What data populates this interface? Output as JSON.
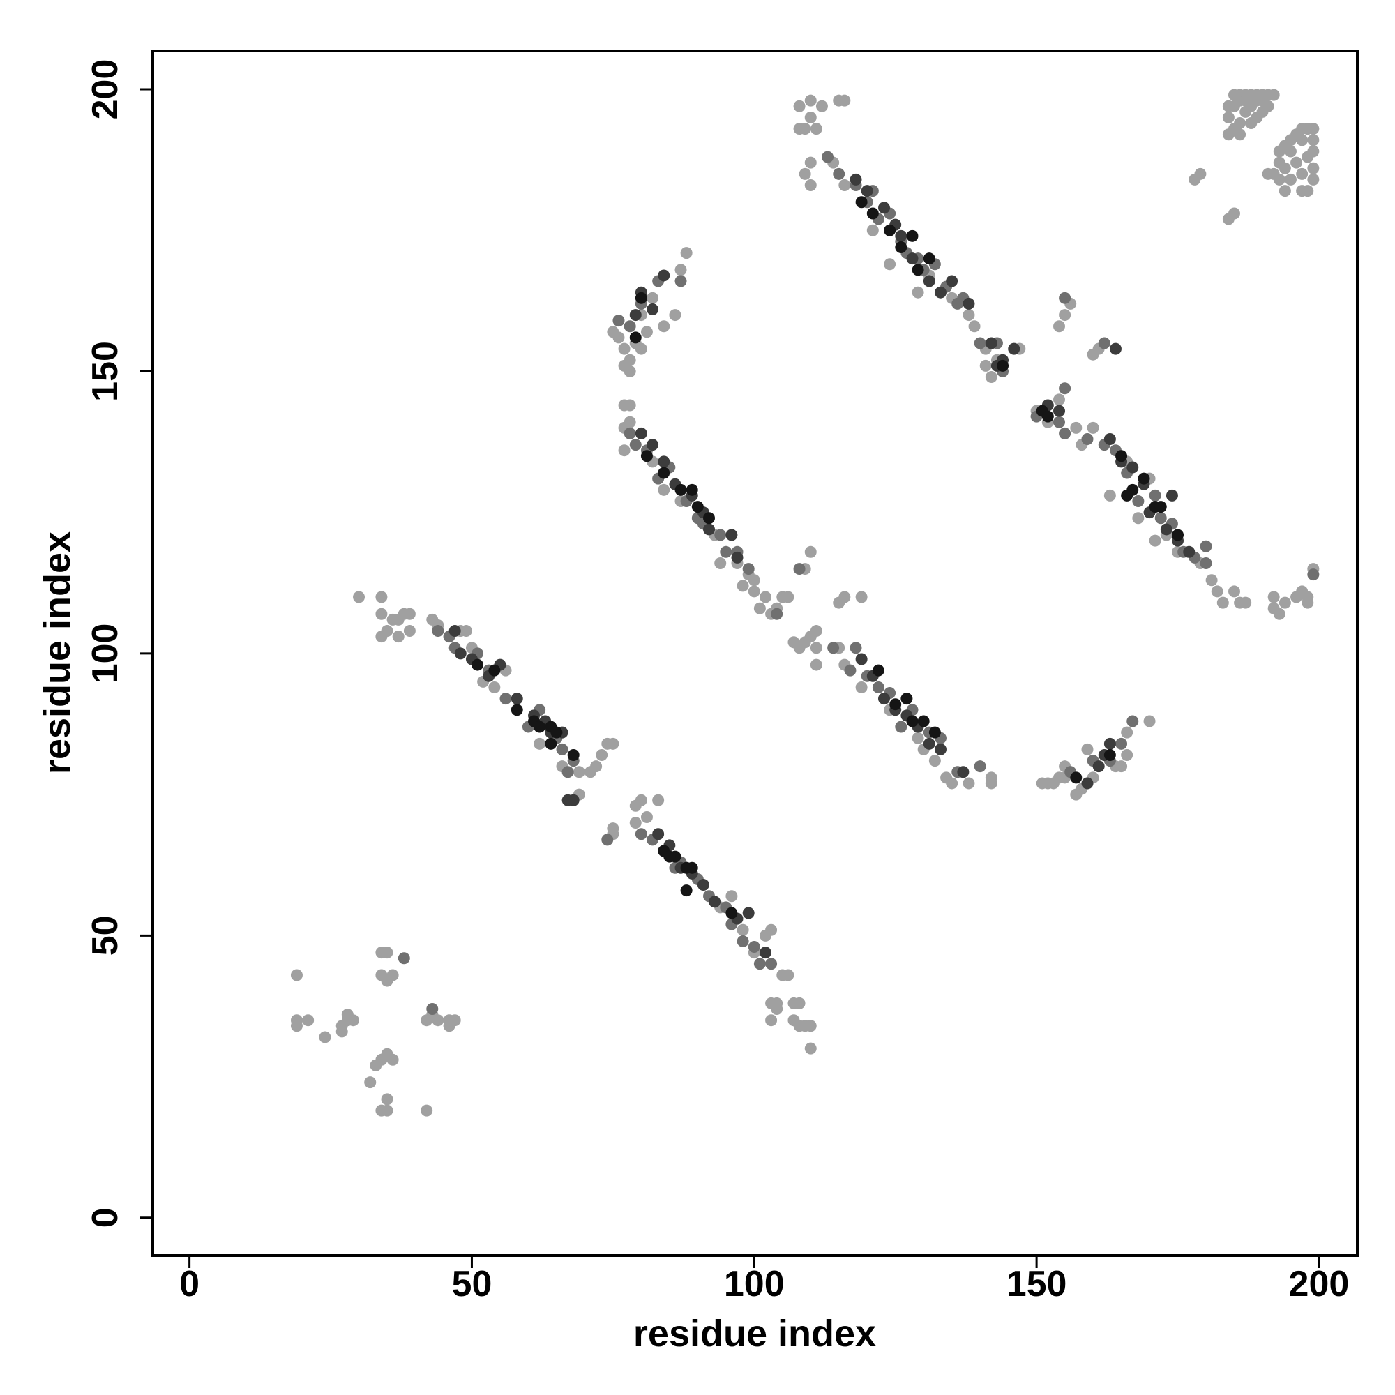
{
  "chart_data": {
    "type": "scatter",
    "xlabel": "residue index",
    "ylabel": "residue index",
    "xlim": [
      -6.5,
      206.8
    ],
    "ylim": [
      -6.7,
      206.8
    ],
    "xticks": [
      0,
      50,
      100,
      150,
      200
    ],
    "yticks": [
      0,
      50,
      100,
      150,
      200
    ],
    "series": [
      {
        "color": "#a0a0a0",
        "x": [
          19,
          19,
          19,
          21,
          24,
          27,
          27,
          28,
          28,
          29,
          34,
          35,
          34,
          36,
          35,
          34,
          35,
          36,
          33,
          32,
          35,
          34,
          35,
          42,
          42,
          43,
          44,
          46,
          47,
          46,
          30,
          34,
          34,
          35,
          36,
          37,
          38,
          39,
          39,
          37,
          34,
          43,
          44,
          48,
          49,
          50,
          52,
          54,
          56,
          62,
          66,
          69,
          71,
          72,
          73,
          74,
          75,
          69,
          75,
          75,
          79,
          80,
          81,
          79,
          83,
          96,
          94,
          98,
          100,
          102,
          103,
          103,
          104,
          105,
          106,
          103,
          104,
          107,
          108,
          107,
          108,
          109,
          110,
          110,
          77,
          78,
          77,
          78,
          77,
          82,
          84,
          87,
          93,
          94,
          97,
          98,
          99,
          100,
          100,
          101,
          102,
          103,
          104,
          105,
          106,
          109,
          110,
          107,
          108,
          109,
          110,
          111,
          111,
          111,
          115,
          116,
          119,
          115,
          116,
          119,
          124,
          129,
          130,
          132,
          134,
          135,
          138,
          142,
          142,
          151,
          152,
          153,
          154,
          155,
          155,
          157,
          158,
          159,
          160,
          159,
          164,
          165,
          166,
          170,
          166,
          75,
          76,
          77,
          78,
          78,
          77,
          79,
          80,
          81,
          80,
          82,
          84,
          86,
          88,
          87,
          108,
          109,
          110,
          111,
          110,
          108,
          112,
          110,
          109,
          110,
          115,
          116,
          114,
          116,
          121,
          124,
          129,
          131,
          135,
          138,
          139,
          141,
          141,
          142,
          143,
          147,
          154,
          155,
          156,
          160,
          161,
          150,
          152,
          154,
          157,
          160,
          158,
          163,
          166,
          170,
          168,
          171,
          173,
          175,
          179,
          181,
          182,
          183,
          185,
          186,
          187,
          192,
          192,
          193,
          194,
          196,
          198,
          198,
          199,
          197,
          184,
          185,
          186,
          187,
          188,
          189,
          190,
          191,
          192,
          185,
          186,
          187,
          188,
          189,
          190,
          184,
          185,
          186,
          187,
          184,
          186,
          188,
          190,
          191,
          189,
          193,
          194,
          195,
          196,
          197,
          198,
          199,
          193,
          195,
          197,
          199,
          192,
          194,
          196,
          198,
          199,
          191,
          193,
          195,
          197,
          199,
          194,
          197,
          198,
          199,
          178,
          179,
          184,
          185
        ],
        "y": [
          43,
          35,
          34,
          35,
          32,
          34,
          33,
          35,
          36,
          35,
          47,
          47,
          43,
          43,
          42,
          28,
          29,
          28,
          27,
          24,
          21,
          19,
          19,
          19,
          35,
          36,
          35,
          35,
          35,
          34,
          110,
          110,
          107,
          104,
          106,
          106,
          107,
          107,
          104,
          103,
          103,
          106,
          105,
          104,
          104,
          101,
          95,
          94,
          97,
          84,
          80,
          79,
          79,
          80,
          82,
          84,
          84,
          75,
          69,
          68,
          73,
          74,
          71,
          70,
          74,
          57,
          55,
          51,
          47,
          50,
          51,
          38,
          38,
          43,
          43,
          35,
          37,
          38,
          38,
          35,
          34,
          34,
          34,
          30,
          144,
          144,
          140,
          141,
          136,
          134,
          129,
          127,
          121,
          116,
          116,
          112,
          114,
          111,
          113,
          108,
          110,
          107,
          108,
          110,
          110,
          115,
          118,
          102,
          101,
          102,
          103,
          104,
          101,
          98,
          109,
          110,
          110,
          101,
          98,
          94,
          90,
          85,
          83,
          81,
          78,
          77,
          77,
          78,
          77,
          77,
          77,
          77,
          78,
          78,
          80,
          75,
          76,
          77,
          78,
          83,
          80,
          80,
          82,
          88,
          86,
          157,
          156,
          154,
          152,
          150,
          151,
          155,
          154,
          157,
          160,
          163,
          158,
          160,
          171,
          168,
          193,
          193,
          195,
          193,
          198,
          197,
          197,
          187,
          185,
          183,
          198,
          198,
          187,
          183,
          175,
          169,
          164,
          167,
          163,
          160,
          158,
          154,
          151,
          149,
          152,
          154,
          158,
          160,
          162,
          153,
          154,
          143,
          141,
          145,
          140,
          140,
          137,
          128,
          134,
          131,
          124,
          120,
          121,
          118,
          116,
          113,
          111,
          109,
          111,
          109,
          109,
          110,
          108,
          107,
          109,
          110,
          110,
          109,
          115,
          111,
          195,
          197,
          198,
          199,
          199,
          199,
          199,
          199,
          199,
          193,
          194,
          196,
          197,
          198,
          198,
          197,
          199,
          199,
          198,
          192,
          192,
          194,
          196,
          197,
          195,
          189,
          190,
          191,
          192,
          193,
          193,
          193,
          187,
          189,
          191,
          191,
          185,
          186,
          187,
          188,
          189,
          185,
          184,
          184,
          185,
          186,
          182,
          182,
          182,
          184,
          184,
          185,
          177,
          178
        ]
      },
      {
        "color": "#707070",
        "x": [
          44,
          46,
          47,
          51,
          53,
          56,
          60,
          62,
          65,
          66,
          67,
          68,
          74,
          80,
          82,
          84,
          86,
          87,
          90,
          92,
          95,
          96,
          98,
          100,
          101,
          103,
          43,
          38,
          78,
          79,
          81,
          83,
          85,
          88,
          90,
          91,
          94,
          95,
          97,
          99,
          104,
          108,
          114,
          117,
          118,
          120,
          122,
          124,
          126,
          128,
          131,
          133,
          136,
          140,
          113,
          115,
          118,
          120,
          121,
          122,
          124,
          126,
          127,
          129,
          130,
          132,
          134,
          136,
          137,
          140,
          143,
          144,
          150,
          154,
          155,
          159,
          162,
          164,
          166,
          168,
          171,
          172,
          174,
          176,
          178,
          180,
          180,
          199,
          76,
          78,
          80,
          83,
          87,
          156,
          160,
          163,
          165,
          167,
          155,
          162,
          155
        ],
        "y": [
          104,
          103,
          101,
          100,
          97,
          92,
          87,
          90,
          85,
          83,
          79,
          81,
          67,
          68,
          67,
          65,
          62,
          63,
          60,
          57,
          55,
          52,
          49,
          48,
          45,
          45,
          37,
          46,
          139,
          137,
          136,
          131,
          133,
          127,
          124,
          123,
          121,
          118,
          118,
          115,
          107,
          115,
          101,
          97,
          101,
          96,
          94,
          93,
          87,
          90,
          86,
          85,
          79,
          80,
          188,
          185,
          183,
          180,
          182,
          177,
          178,
          173,
          171,
          170,
          168,
          169,
          165,
          162,
          163,
          155,
          155,
          150,
          142,
          141,
          139,
          138,
          137,
          136,
          132,
          127,
          128,
          124,
          123,
          118,
          117,
          116,
          119,
          114,
          159,
          158,
          162,
          166,
          166,
          79,
          81,
          81,
          84,
          88,
          147,
          155,
          163
        ]
      },
      {
        "color": "#3c3c3c",
        "x": [
          47,
          48,
          50,
          53,
          55,
          58,
          61,
          63,
          64,
          66,
          68,
          67,
          83,
          85,
          87,
          89,
          91,
          93,
          97,
          99,
          102,
          80,
          82,
          84,
          86,
          89,
          91,
          92,
          96,
          97,
          119,
          121,
          123,
          125,
          127,
          129,
          131,
          133,
          137,
          79,
          80,
          82,
          84,
          118,
          120,
          123,
          125,
          126,
          128,
          131,
          133,
          135,
          138,
          142,
          144,
          143,
          152,
          154,
          163,
          165,
          167,
          169,
          170,
          173,
          175,
          177,
          174,
          146,
          164,
          159,
          161,
          162,
          163
        ],
        "y": [
          104,
          100,
          99,
          96,
          98,
          92,
          89,
          88,
          86,
          86,
          74,
          74,
          68,
          66,
          62,
          61,
          59,
          56,
          53,
          54,
          47,
          139,
          137,
          134,
          130,
          128,
          125,
          122,
          121,
          117,
          99,
          96,
          92,
          90,
          89,
          87,
          84,
          83,
          79,
          160,
          164,
          161,
          167,
          184,
          182,
          179,
          176,
          174,
          170,
          166,
          164,
          166,
          162,
          155,
          152,
          151,
          144,
          143,
          138,
          134,
          133,
          130,
          125,
          122,
          120,
          118,
          128,
          154,
          154,
          77,
          80,
          82,
          84
        ]
      },
      {
        "color": "#151515",
        "x": [
          51,
          54,
          58,
          61,
          62,
          64,
          64,
          65,
          68,
          84,
          86,
          88,
          89,
          85,
          88,
          96,
          81,
          84,
          87,
          89,
          90,
          92,
          122,
          125,
          127,
          128,
          130,
          132,
          79,
          80,
          119,
          121,
          124,
          126,
          128,
          129,
          131,
          144,
          151,
          152,
          165,
          167,
          166,
          169,
          171,
          172,
          175,
          157,
          163
        ],
        "y": [
          98,
          97,
          90,
          88,
          87,
          87,
          84,
          86,
          82,
          65,
          64,
          62,
          62,
          64,
          58,
          54,
          135,
          132,
          129,
          129,
          126,
          124,
          97,
          91,
          92,
          88,
          88,
          86,
          156,
          163,
          180,
          178,
          175,
          172,
          174,
          168,
          170,
          151,
          143,
          142,
          135,
          129,
          128,
          131,
          126,
          126,
          121,
          78,
          82
        ]
      }
    ]
  }
}
